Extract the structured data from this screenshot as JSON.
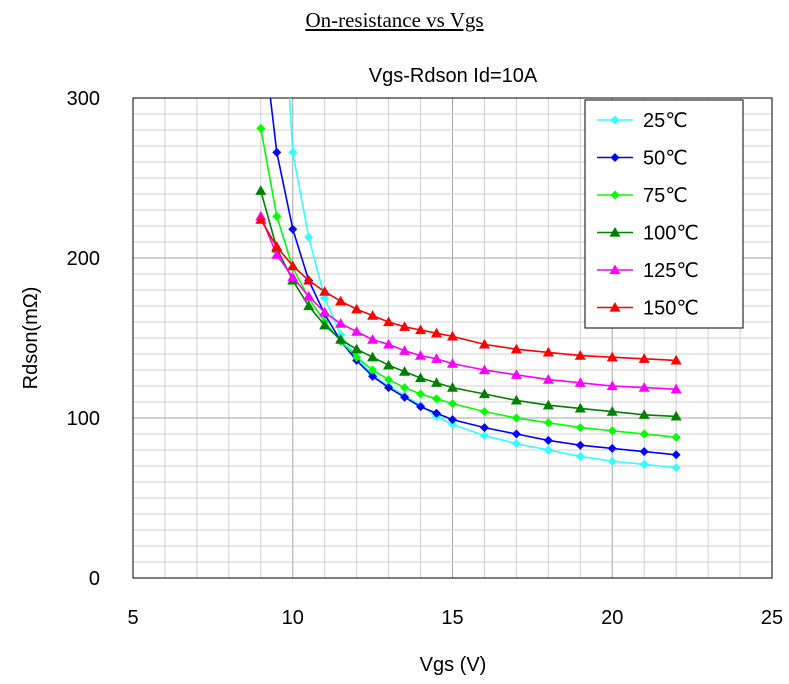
{
  "page": {
    "heading": "On-resistance vs Vgs"
  },
  "chart_data": {
    "type": "line",
    "title": "Vgs-Rdson Id=10A",
    "xlabel": "Vgs (V)",
    "ylabel": "Rdson(mΩ)",
    "xlim": [
      5,
      25
    ],
    "ylim": [
      0,
      300
    ],
    "x_ticks": [
      5,
      10,
      15,
      20,
      25
    ],
    "y_ticks": [
      0,
      100,
      200,
      300
    ],
    "grid": true,
    "legend_position": "top-right",
    "series": [
      {
        "name": "25℃",
        "color": "#33ffff",
        "marker": "diamond",
        "points": [
          [
            9.9,
            300
          ],
          [
            10,
            266
          ],
          [
            10.5,
            213
          ],
          [
            11,
            175
          ],
          [
            11.5,
            152
          ],
          [
            12,
            138
          ],
          [
            12.5,
            127
          ],
          [
            13,
            120
          ],
          [
            13.5,
            114
          ],
          [
            14,
            108
          ],
          [
            14.5,
            101
          ],
          [
            15,
            96
          ],
          [
            16,
            89
          ],
          [
            17,
            84
          ],
          [
            18,
            80
          ],
          [
            19,
            76
          ],
          [
            20,
            73
          ],
          [
            21,
            71
          ],
          [
            22,
            69
          ]
        ]
      },
      {
        "name": "50℃",
        "color": "#0000ff",
        "marker": "diamond",
        "points": [
          [
            9.3,
            300
          ],
          [
            9.5,
            266
          ],
          [
            10,
            218
          ],
          [
            10.5,
            186
          ],
          [
            11,
            165
          ],
          [
            11.5,
            148
          ],
          [
            12,
            136
          ],
          [
            12.5,
            126
          ],
          [
            13,
            119
          ],
          [
            13.5,
            113
          ],
          [
            14,
            107
          ],
          [
            14.5,
            103
          ],
          [
            15,
            99
          ],
          [
            16,
            94
          ],
          [
            17,
            90
          ],
          [
            18,
            86
          ],
          [
            19,
            83
          ],
          [
            20,
            81
          ],
          [
            21,
            79
          ],
          [
            22,
            77
          ]
        ]
      },
      {
        "name": "75℃",
        "color": "#00ff00",
        "marker": "diamond",
        "points": [
          [
            9,
            281
          ],
          [
            9.5,
            226
          ],
          [
            10,
            194
          ],
          [
            10.5,
            175
          ],
          [
            11,
            160
          ],
          [
            11.5,
            148
          ],
          [
            12,
            138
          ],
          [
            12.5,
            130
          ],
          [
            13,
            124
          ],
          [
            13.5,
            119
          ],
          [
            14,
            115
          ],
          [
            14.5,
            112
          ],
          [
            15,
            109
          ],
          [
            16,
            104
          ],
          [
            17,
            100
          ],
          [
            18,
            97
          ],
          [
            19,
            94
          ],
          [
            20,
            92
          ],
          [
            21,
            90
          ],
          [
            22,
            88
          ]
        ]
      },
      {
        "name": "100℃",
        "color": "#008000",
        "marker": "triangle",
        "points": [
          [
            9,
            242
          ],
          [
            9.5,
            206
          ],
          [
            10,
            186
          ],
          [
            10.5,
            170
          ],
          [
            11,
            158
          ],
          [
            11.5,
            149
          ],
          [
            12,
            143
          ],
          [
            12.5,
            138
          ],
          [
            13,
            133
          ],
          [
            13.5,
            129
          ],
          [
            14,
            125
          ],
          [
            14.5,
            122
          ],
          [
            15,
            119
          ],
          [
            16,
            115
          ],
          [
            17,
            111
          ],
          [
            18,
            108
          ],
          [
            19,
            106
          ],
          [
            20,
            104
          ],
          [
            21,
            102
          ],
          [
            22,
            101
          ]
        ]
      },
      {
        "name": "125℃",
        "color": "#ff00ff",
        "marker": "triangle",
        "points": [
          [
            9,
            226
          ],
          [
            9.5,
            202
          ],
          [
            10,
            188
          ],
          [
            10.5,
            176
          ],
          [
            11,
            166
          ],
          [
            11.5,
            159
          ],
          [
            12,
            154
          ],
          [
            12.5,
            149
          ],
          [
            13,
            146
          ],
          [
            13.5,
            142
          ],
          [
            14,
            139
          ],
          [
            14.5,
            137
          ],
          [
            15,
            134
          ],
          [
            16,
            130
          ],
          [
            17,
            127
          ],
          [
            18,
            124
          ],
          [
            19,
            122
          ],
          [
            20,
            120
          ],
          [
            21,
            119
          ],
          [
            22,
            118
          ]
        ]
      },
      {
        "name": "150℃",
        "color": "#ff0000",
        "marker": "triangle",
        "points": [
          [
            9,
            224
          ],
          [
            9.5,
            207
          ],
          [
            10,
            195
          ],
          [
            10.5,
            186
          ],
          [
            11,
            179
          ],
          [
            11.5,
            173
          ],
          [
            12,
            168
          ],
          [
            12.5,
            164
          ],
          [
            13,
            160
          ],
          [
            13.5,
            157
          ],
          [
            14,
            155
          ],
          [
            14.5,
            153
          ],
          [
            15,
            151
          ],
          [
            16,
            146
          ],
          [
            17,
            143
          ],
          [
            18,
            141
          ],
          [
            19,
            139
          ],
          [
            20,
            138
          ],
          [
            21,
            137
          ],
          [
            22,
            136
          ]
        ]
      }
    ]
  }
}
